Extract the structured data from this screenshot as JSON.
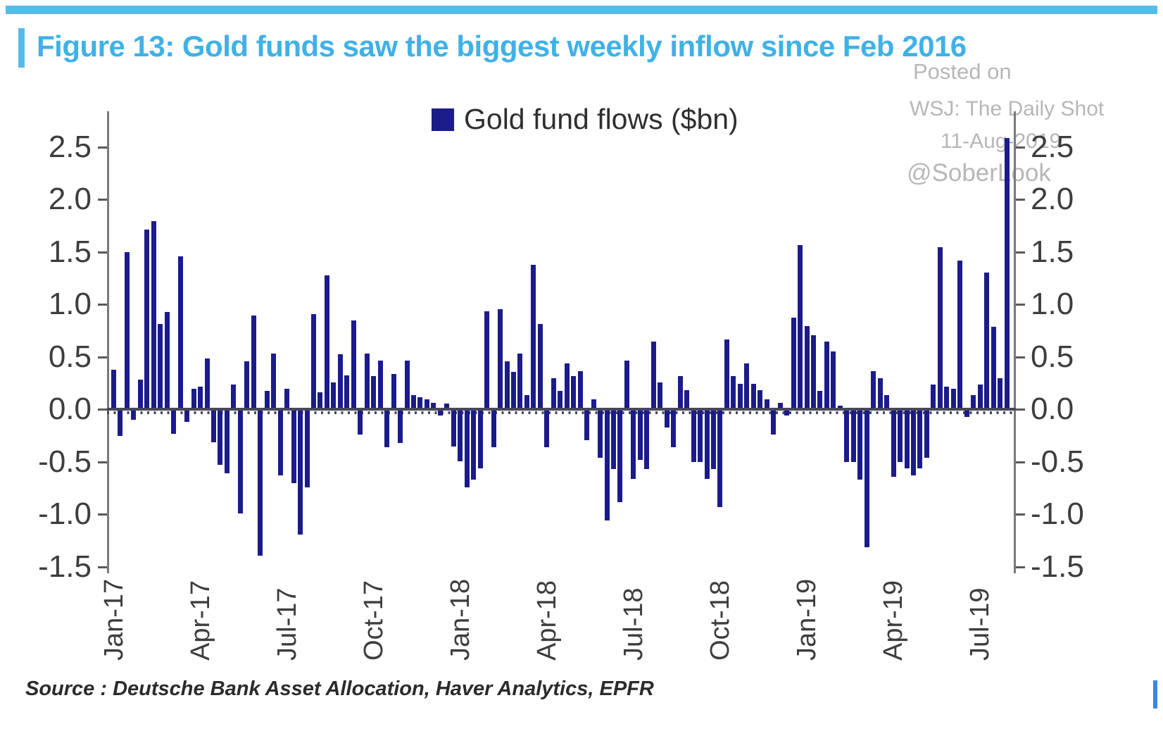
{
  "figure": {
    "title": "Figure 13: Gold funds saw the biggest weekly inflow since Feb 2016",
    "title_color": "#3fb1e7",
    "accent_color": "#55bbea"
  },
  "legend": {
    "label": "Gold fund flows ($bn)",
    "swatch_color": "#1b1b8a"
  },
  "watermark": {
    "line1": "Posted on",
    "line2": "WSJ: The Daily Shot",
    "line3": "11-Aug-2019",
    "line4": "@SoberLook"
  },
  "source_note": "Source : Deutsche Bank Asset Allocation, Haver Analytics, EPFR",
  "colors": {
    "bar": "#1b1b8a",
    "baseline": "#47475a",
    "axis": "#7a7a7a",
    "tick_text": "#3d3d3d",
    "watermark": "#b7b7b7",
    "corner_mark": "#3a86e8"
  },
  "chart_data": {
    "type": "bar",
    "title": "Gold fund flows ($bn)",
    "xlabel": "",
    "ylabel": "",
    "ylim": [
      -1.5,
      2.6
    ],
    "grid": false,
    "legend_position": "top-center",
    "y_ticks": [
      2.5,
      2.0,
      1.5,
      1.0,
      0.5,
      0.0,
      -0.5,
      -1.0,
      -1.5
    ],
    "y_tick_labels": [
      "2.5",
      "2.0",
      "1.5",
      "1.0",
      "0.5",
      "0.0",
      "-0.5",
      "-1.0",
      "-1.5"
    ],
    "x_tick_labels": [
      "Jan-17",
      "Apr-17",
      "Jul-17",
      "Oct-17",
      "Jan-18",
      "Apr-18",
      "Jul-18",
      "Oct-18",
      "Jan-19",
      "Apr-19",
      "Jul-19"
    ],
    "x_tick_week_indices": [
      0,
      13,
      26,
      39,
      52,
      65,
      78,
      91,
      104,
      117,
      130
    ],
    "values": [
      0.36,
      -0.24,
      1.48,
      -0.09,
      0.27,
      1.7,
      1.78,
      0.8,
      0.91,
      -0.22,
      1.44,
      -0.11,
      0.18,
      0.2,
      0.47,
      -0.3,
      -0.52,
      -0.6,
      0.22,
      -0.98,
      0.44,
      0.88,
      -1.38,
      0.16,
      0.52,
      -0.62,
      0.18,
      -0.69,
      -1.18,
      -0.73,
      0.89,
      0.15,
      1.26,
      0.24,
      0.51,
      0.31,
      0.83,
      -0.23,
      0.52,
      0.3,
      0.45,
      -0.35,
      0.32,
      -0.31,
      0.45,
      0.12,
      0.1,
      0.08,
      0.05,
      -0.05,
      0.04,
      -0.34,
      -0.48,
      -0.73,
      -0.66,
      -0.55,
      0.92,
      -0.35,
      0.94,
      0.44,
      0.34,
      0.52,
      0.12,
      1.36,
      0.8,
      -0.35,
      0.28,
      0.16,
      0.42,
      0.3,
      0.35,
      -0.28,
      0.08,
      -0.45,
      -1.05,
      -0.56,
      -0.87,
      0.45,
      -0.65,
      -0.47,
      -0.56,
      0.63,
      0.24,
      -0.16,
      -0.35,
      0.3,
      0.17,
      -0.49,
      -0.49,
      -0.65,
      -0.56,
      -0.92,
      0.65,
      0.3,
      0.23,
      0.42,
      0.23,
      0.17,
      0.08,
      -0.23,
      0.05,
      -0.05,
      0.86,
      1.55,
      0.78,
      0.69,
      0.16,
      0.63,
      0.54,
      0.02,
      -0.49,
      -0.49,
      -0.66,
      -1.3,
      0.35,
      0.28,
      0.12,
      -0.63,
      -0.49,
      -0.55,
      -0.62,
      -0.55,
      -0.45,
      0.22,
      1.53,
      0.2,
      0.18,
      1.4,
      -0.06,
      0.12,
      0.22,
      1.29,
      0.77,
      0.28,
      2.57
    ]
  }
}
